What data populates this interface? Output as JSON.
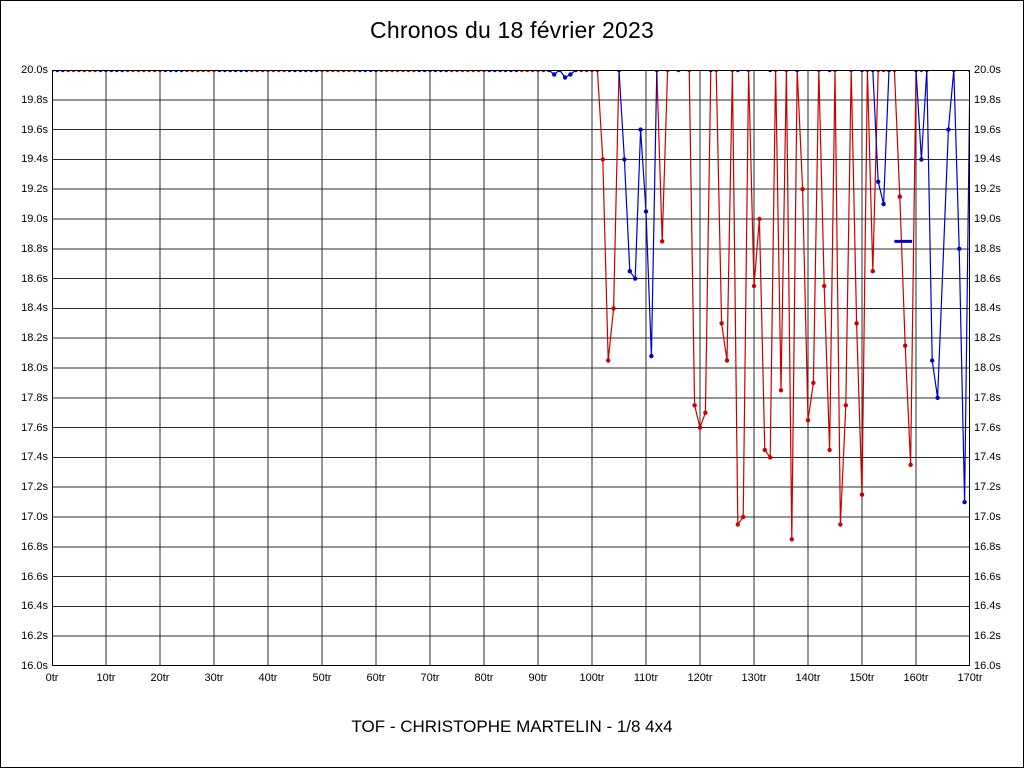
{
  "title": "Chronos du 18 février 2023",
  "caption": "TOF - CHRISTOPHE MARTELIN - 1/8 4x4",
  "chart_data": {
    "type": "line",
    "title": "Chronos du 18 février 2023",
    "subtitle": "TOF - CHRISTOPHE MARTELIN - 1/8 4x4",
    "xlabel": "",
    "ylabel": "",
    "x_unit": "tr (tours/laps)",
    "y_unit": "s (secondes)",
    "xlim": [
      0,
      170
    ],
    "ylim": [
      16.0,
      20.0
    ],
    "grid": true,
    "grid_color": "#2b2b2b",
    "legend_position": "none",
    "x_tick_values": [
      0,
      10,
      20,
      30,
      40,
      50,
      60,
      70,
      80,
      90,
      100,
      110,
      120,
      130,
      140,
      150,
      160,
      170
    ],
    "x_tick_labels": [
      "0tr",
      "10tr",
      "20tr",
      "30tr",
      "40tr",
      "50tr",
      "60tr",
      "70tr",
      "80tr",
      "90tr",
      "100tr",
      "110tr",
      "120tr",
      "130tr",
      "140tr",
      "150tr",
      "160tr",
      "170tr"
    ],
    "y_tick_values": [
      20.0,
      19.8,
      19.6,
      19.4,
      19.2,
      19.0,
      18.8,
      18.6,
      18.4,
      18.2,
      18.0,
      17.8,
      17.6,
      17.4,
      17.2,
      17.0,
      16.8,
      16.6,
      16.4,
      16.2,
      16.0
    ],
    "y_tick_labels_left": [
      "20.0s",
      "19.8s",
      "19.6s",
      "19.4s",
      "19.2s",
      "19.0s",
      "18.8s",
      "18.6s",
      "18.4s",
      "18.2s",
      "18.0s",
      "17.8s",
      "17.6s",
      "17.4s",
      "17.2s",
      "17.0s",
      "16.8s",
      "16.6s",
      "16.4s",
      "16.2s",
      "16.0s"
    ],
    "y_tick_labels_right": [
      "20.0s",
      "19.8s",
      "19.6s",
      "19.4s",
      "19.2s",
      "19.0s",
      "18.8s",
      "18.6s",
      "18.4s",
      "18.2s",
      "18.0s",
      "17.8s",
      "17.6s",
      "17.4s",
      "17.2s",
      "17.0s",
      "16.8s",
      "16.6s",
      "16.4s",
      "16.2s",
      "16.0s"
    ],
    "series": [
      {
        "name": "red",
        "color": "#cc0000",
        "points": [
          [
            3,
            20
          ],
          [
            4,
            20
          ],
          [
            5,
            20
          ],
          [
            6,
            20
          ],
          [
            7,
            20
          ],
          [
            8,
            20
          ],
          [
            14,
            20
          ],
          [
            15,
            20
          ],
          [
            16,
            20
          ],
          [
            17,
            20
          ],
          [
            18,
            20
          ],
          [
            19,
            20
          ],
          [
            20,
            20
          ],
          [
            25,
            20
          ],
          [
            26,
            20
          ],
          [
            27,
            20
          ],
          [
            28,
            20
          ],
          [
            29,
            20
          ],
          [
            30,
            20
          ],
          [
            37,
            20
          ],
          [
            38,
            20
          ],
          [
            39,
            20
          ],
          [
            40,
            20
          ],
          [
            41,
            20
          ],
          [
            42,
            20
          ],
          [
            43,
            20
          ],
          [
            50,
            20
          ],
          [
            51,
            20
          ],
          [
            52,
            20
          ],
          [
            53,
            20
          ],
          [
            54,
            20
          ],
          [
            55,
            20
          ],
          [
            56,
            20
          ],
          [
            61,
            20
          ],
          [
            62,
            20
          ],
          [
            63,
            20
          ],
          [
            64,
            20
          ],
          [
            65,
            20
          ],
          [
            66,
            20
          ],
          [
            67,
            20
          ],
          [
            74,
            20
          ],
          [
            75,
            20
          ],
          [
            76,
            20
          ],
          [
            77,
            20
          ],
          [
            78,
            20
          ],
          [
            79,
            20
          ],
          [
            80,
            20
          ],
          [
            87,
            20
          ],
          [
            88,
            20
          ],
          [
            89,
            20
          ],
          [
            90,
            20
          ],
          [
            91,
            20
          ],
          [
            98,
            20
          ],
          [
            99,
            20
          ],
          [
            100,
            20
          ],
          [
            101,
            20
          ],
          [
            102,
            19.4
          ],
          [
            103,
            18.05
          ],
          [
            104,
            18.4
          ],
          [
            105,
            20
          ],
          [
            112,
            20
          ],
          [
            113,
            18.85
          ],
          [
            114,
            20
          ],
          [
            118,
            20
          ],
          [
            119,
            17.75
          ],
          [
            120,
            17.6
          ],
          [
            121,
            17.7
          ],
          [
            122,
            20
          ],
          [
            123,
            20
          ],
          [
            124,
            18.3
          ],
          [
            125,
            18.05
          ],
          [
            126,
            20
          ],
          [
            127,
            16.95
          ],
          [
            128,
            17.0
          ],
          [
            129,
            20
          ],
          [
            130,
            18.55
          ],
          [
            131,
            19.0
          ],
          [
            132,
            17.45
          ],
          [
            133,
            17.4
          ],
          [
            134,
            20
          ],
          [
            135,
            17.85
          ],
          [
            136,
            20
          ],
          [
            137,
            16.85
          ],
          [
            138,
            20
          ],
          [
            139,
            19.2
          ],
          [
            140,
            17.65
          ],
          [
            141,
            17.9
          ],
          [
            142,
            20
          ],
          [
            143,
            18.55
          ],
          [
            144,
            17.45
          ],
          [
            145,
            20
          ],
          [
            146,
            16.95
          ],
          [
            147,
            17.75
          ],
          [
            148,
            20
          ],
          [
            149,
            18.3
          ],
          [
            150,
            17.15
          ],
          [
            151,
            20
          ],
          [
            152,
            18.65
          ],
          [
            153,
            20
          ],
          [
            154,
            20
          ],
          [
            155,
            20
          ],
          [
            156,
            20
          ],
          [
            157,
            19.15
          ],
          [
            158,
            18.15
          ],
          [
            159,
            17.35
          ],
          [
            160,
            20
          ],
          [
            161,
            20
          ]
        ]
      },
      {
        "name": "blue",
        "color": "#0000c8",
        "points": [
          [
            0,
            20
          ],
          [
            1,
            20
          ],
          [
            2,
            20
          ],
          [
            9,
            20
          ],
          [
            10,
            20
          ],
          [
            11,
            20
          ],
          [
            12,
            20
          ],
          [
            13,
            20
          ],
          [
            21,
            20
          ],
          [
            22,
            20
          ],
          [
            23,
            20
          ],
          [
            24,
            20
          ],
          [
            31,
            20
          ],
          [
            32,
            20
          ],
          [
            33,
            20
          ],
          [
            34,
            20
          ],
          [
            35,
            20
          ],
          [
            36,
            20
          ],
          [
            44,
            20
          ],
          [
            45,
            20
          ],
          [
            46,
            20
          ],
          [
            47,
            20
          ],
          [
            48,
            20
          ],
          [
            49,
            20
          ],
          [
            57,
            20
          ],
          [
            58,
            20
          ],
          [
            59,
            20
          ],
          [
            60,
            20
          ],
          [
            68,
            20
          ],
          [
            69,
            20
          ],
          [
            70,
            20
          ],
          [
            71,
            20
          ],
          [
            72,
            20
          ],
          [
            73,
            20
          ],
          [
            81,
            20
          ],
          [
            82,
            20
          ],
          [
            83,
            20
          ],
          [
            84,
            20
          ],
          [
            85,
            20
          ],
          [
            86,
            20
          ],
          [
            92,
            20
          ],
          [
            93,
            19.97
          ],
          [
            94,
            20
          ],
          [
            95,
            19.95
          ],
          [
            96,
            19.97
          ],
          [
            97,
            20
          ],
          [
            105,
            20
          ],
          [
            106,
            19.4
          ],
          [
            107,
            18.65
          ],
          [
            108,
            18.6
          ],
          [
            109,
            19.6
          ],
          [
            110,
            19.05
          ],
          [
            111,
            18.08
          ],
          [
            112,
            20
          ],
          [
            116,
            20
          ],
          [
            122,
            20
          ],
          [
            127,
            20
          ],
          [
            133,
            20
          ],
          [
            138,
            20
          ],
          [
            144,
            20
          ],
          [
            150,
            20
          ],
          [
            152,
            20
          ],
          [
            153,
            19.25
          ],
          [
            154,
            19.1
          ],
          [
            155,
            20
          ],
          [
            160,
            20
          ],
          [
            161,
            19.4
          ],
          [
            162,
            20
          ],
          [
            163,
            18.05
          ],
          [
            164,
            17.8
          ],
          [
            166,
            19.6
          ],
          [
            167,
            20
          ],
          [
            168,
            18.8
          ],
          [
            169,
            17.1
          ],
          [
            170,
            20
          ]
        ]
      }
    ],
    "annotations": [
      {
        "type": "hline-segment",
        "label": "best-average-marker",
        "color": "#0000c8",
        "x1": 156,
        "x2": 159.3,
        "y": 18.85
      }
    ]
  }
}
